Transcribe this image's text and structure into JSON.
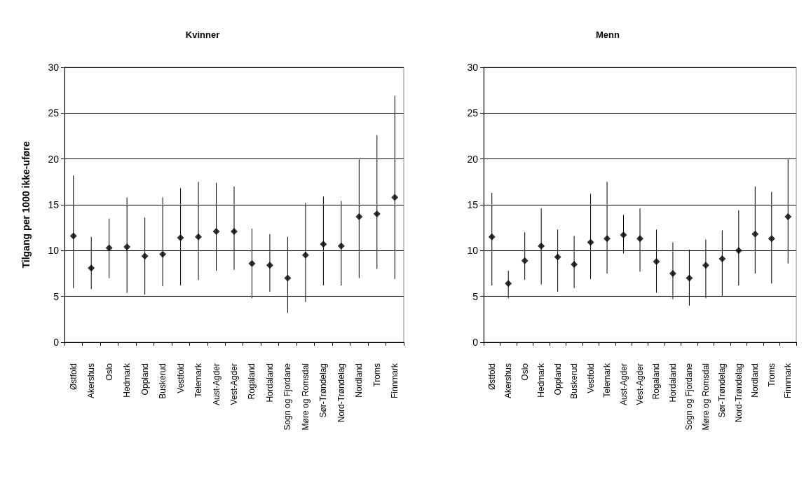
{
  "chart_data": [
    {
      "type": "scatter",
      "title": "Kvinner",
      "ylabel": "Tilgang per 1000 ikke-uføre",
      "categories": [
        "Østfold",
        "Akershus",
        "Oslo",
        "Hedmark",
        "Oppland",
        "Buskerud",
        "Vestfold",
        "Telemark",
        "Aust-Agder",
        "Vest-Agder",
        "Rogaland",
        "Hordaland",
        "Sogn og Fjordane",
        "Møre og Romsdal",
        "Sør-Trøndelag",
        "Nord-Trøndelag",
        "Nordland",
        "Troms",
        "Finnmark"
      ],
      "values": [
        11.6,
        8.1,
        10.3,
        10.4,
        9.4,
        9.6,
        11.4,
        11.5,
        12.1,
        12.1,
        8.6,
        8.4,
        7.0,
        9.5,
        10.7,
        10.5,
        13.7,
        14.0,
        15.8
      ],
      "errors": [
        [
          5.9,
          18.2
        ],
        [
          5.8,
          11.5
        ],
        [
          7.0,
          13.5
        ],
        [
          5.4,
          15.8
        ],
        [
          5.2,
          13.6
        ],
        [
          6.1,
          15.8
        ],
        [
          6.2,
          16.8
        ],
        [
          6.8,
          17.5
        ],
        [
          7.8,
          17.4
        ],
        [
          7.9,
          17.0
        ],
        [
          4.8,
          12.4
        ],
        [
          5.5,
          11.8
        ],
        [
          3.2,
          11.5
        ],
        [
          4.4,
          15.2
        ],
        [
          6.2,
          15.9
        ],
        [
          6.2,
          15.4
        ],
        [
          7.0,
          20.0
        ],
        [
          8.0,
          22.6
        ],
        [
          6.9,
          26.9
        ]
      ],
      "color": "#000000",
      "marker": "diamond",
      "ylim": [
        0,
        30
      ],
      "yticks": [
        0,
        5,
        10,
        15,
        20,
        25,
        30
      ],
      "grid": "y"
    },
    {
      "type": "scatter",
      "title": "Menn",
      "categories": [
        "Østfold",
        "Akershus",
        "Oslo",
        "Hedmark",
        "Oppland",
        "Buskerud",
        "Vestfold",
        "Telemark",
        "Aust-Agder",
        "Vest-Agder",
        "Rogaland",
        "Hordaland",
        "Sogn og Fjordane",
        "Møre og Romsdal",
        "Sør-Trøndelag",
        "Nord-Trøndelag",
        "Nordland",
        "Troms",
        "Finnmark"
      ],
      "values": [
        11.5,
        6.4,
        8.9,
        10.5,
        9.3,
        8.5,
        10.9,
        11.3,
        11.7,
        11.3,
        8.8,
        7.5,
        7.0,
        8.4,
        9.1,
        10.0,
        11.8,
        11.3,
        13.7
      ],
      "errors": [
        [
          6.2,
          16.3
        ],
        [
          4.8,
          7.8
        ],
        [
          6.8,
          12.0
        ],
        [
          6.3,
          14.6
        ],
        [
          5.5,
          12.3
        ],
        [
          5.9,
          11.6
        ],
        [
          6.9,
          16.2
        ],
        [
          7.5,
          17.5
        ],
        [
          9.7,
          13.9
        ],
        [
          7.7,
          14.6
        ],
        [
          5.4,
          12.3
        ],
        [
          4.7,
          10.9
        ],
        [
          4.0,
          10.1
        ],
        [
          4.8,
          11.2
        ],
        [
          5.0,
          12.2
        ],
        [
          6.2,
          14.4
        ],
        [
          7.5,
          17.0
        ],
        [
          6.4,
          16.4
        ],
        [
          8.6,
          20.0
        ]
      ],
      "color": "#000000",
      "marker": "diamond",
      "ylim": [
        0,
        30
      ],
      "yticks": [
        0,
        5,
        10,
        15,
        20,
        25,
        30
      ],
      "grid": "y"
    }
  ]
}
